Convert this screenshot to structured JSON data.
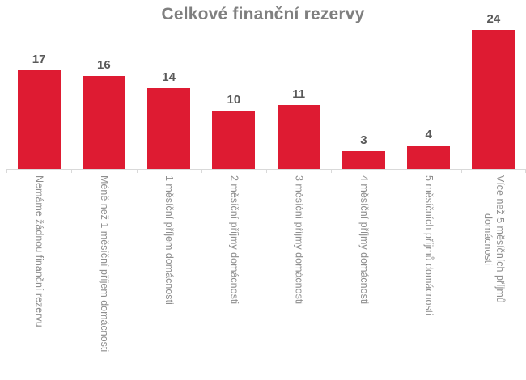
{
  "chart_data": {
    "type": "bar",
    "title": "Celkové finanční rezervy",
    "categories": [
      "Nemáme žádnou finanční rezervu",
      "Méně než 1 měsíční příjem domácnosti",
      "1 měsíční příjem domácnosti",
      "2 měsíční příjmy domácnosti",
      "3 měsíční příjmy domácnosti",
      "4 měsíční příjmy domácnosti",
      "5 měsíčních příjmů domácnosti",
      "Více než 5 měsíčních příjmů\ndomácnosti"
    ],
    "values": [
      17,
      16,
      14,
      10,
      11,
      3,
      4,
      24
    ],
    "data_labels": [
      17,
      16,
      14,
      10,
      11,
      3,
      4,
      24
    ],
    "xlabel": "",
    "ylabel": "",
    "ylim": [
      0,
      24
    ],
    "grid": false,
    "legend": "none",
    "bar_color": "#de1b32",
    "title_color": "#7f7f7f",
    "value_label_color": "#595959",
    "axis_label_color": "#8e8e8e",
    "axis_line_color": "#d9d9d9",
    "background_color": "#ffffff"
  }
}
